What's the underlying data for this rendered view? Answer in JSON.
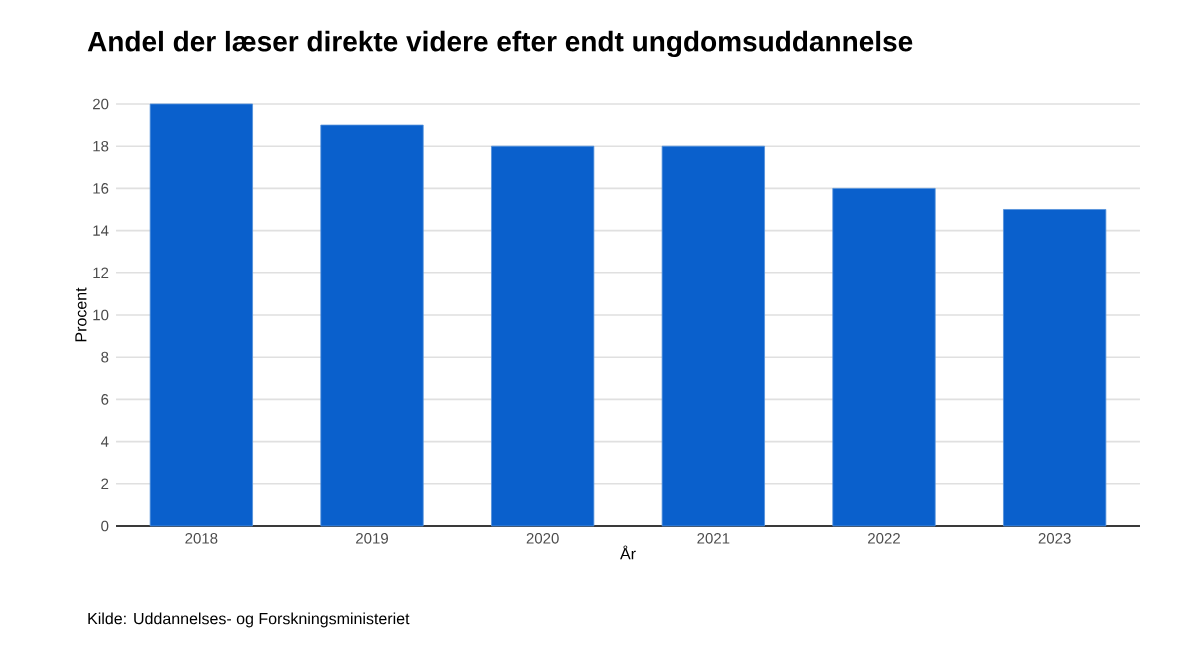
{
  "chart_data": {
    "type": "bar",
    "title": "Andel der læser direkte videre efter endt ungdomsuddannelse",
    "xlabel": "År",
    "ylabel": "Procent",
    "categories": [
      "2018",
      "2019",
      "2020",
      "2021",
      "2022",
      "2023"
    ],
    "values": [
      20,
      19,
      18,
      18,
      16,
      15
    ],
    "color": "#0a60cc",
    "ylim": [
      0,
      20
    ],
    "yticks": [
      0,
      2,
      4,
      6,
      8,
      10,
      12,
      14,
      16,
      18,
      20
    ],
    "grid": "y",
    "annotations": [
      "Kilde: Uddannelses- og Forskningsministeriet"
    ]
  }
}
